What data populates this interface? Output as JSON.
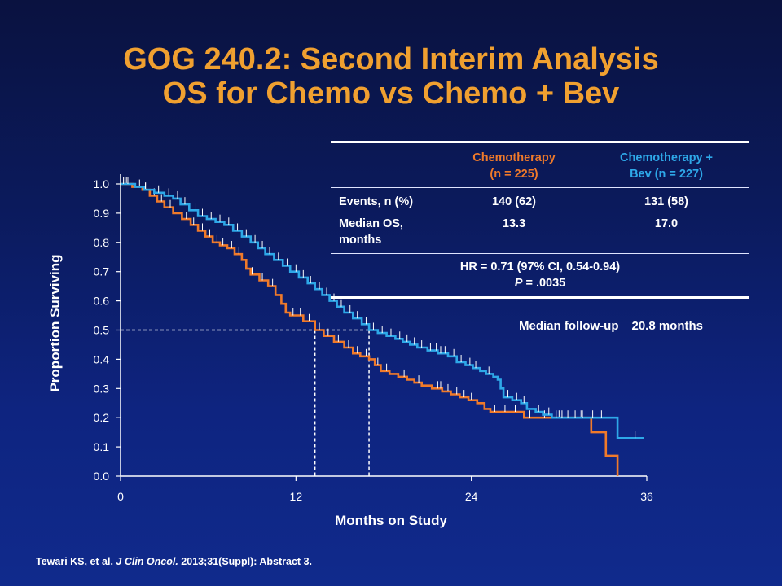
{
  "title_line1": "GOG 240.2: Second Interim Analysis",
  "title_line2": "OS for Chemo vs Chemo + Bev",
  "table": {
    "header": {
      "chemo_line1": "Chemotherapy",
      "chemo_line2": "(n = 225)",
      "bev_line1": "Chemotherapy +",
      "bev_line2": "Bev (n = 227)"
    },
    "events": {
      "label": "Events, n (%)",
      "chemo": "140 (62)",
      "bev": "131 (58)"
    },
    "median_os": {
      "label_line1": "Median OS,",
      "label_line2": "months",
      "chemo": "13.3",
      "bev": "17.0"
    },
    "hr_line": "HR = 0.71 (97% CI, 0.54-0.94)",
    "p_label": "P",
    "p_value": " = .0035"
  },
  "followup": {
    "label": "Median follow-up",
    "value": "20.8 months"
  },
  "citation": {
    "authors": "Tewari KS, et al. ",
    "journal": "J Clin Oncol.",
    "rest": " 2013;31(Suppl): Abstract 3."
  },
  "chart_data": {
    "type": "line",
    "xlabel": "Months on Study",
    "ylabel": "Proportion Surviving",
    "xlim": [
      0,
      36
    ],
    "ylim": [
      0,
      1.0
    ],
    "x_ticks": [
      0,
      12,
      24,
      36
    ],
    "y_ticks": [
      0.0,
      0.1,
      0.2,
      0.3,
      0.4,
      0.5,
      0.6,
      0.7,
      0.8,
      0.9,
      1.0
    ],
    "grid": false,
    "median_reference": {
      "y": 0.5,
      "x_values": [
        13.3,
        17.0
      ]
    },
    "series": [
      {
        "name": "Chemotherapy",
        "color": "#f07a2a",
        "points": [
          [
            0.0,
            1.0
          ],
          [
            0.8,
            0.99
          ],
          [
            1.5,
            0.98
          ],
          [
            2.0,
            0.96
          ],
          [
            2.5,
            0.94
          ],
          [
            3.0,
            0.92
          ],
          [
            3.6,
            0.9
          ],
          [
            4.2,
            0.88
          ],
          [
            4.8,
            0.86
          ],
          [
            5.3,
            0.84
          ],
          [
            5.8,
            0.82
          ],
          [
            6.3,
            0.8
          ],
          [
            6.8,
            0.79
          ],
          [
            7.3,
            0.78
          ],
          [
            7.8,
            0.76
          ],
          [
            8.3,
            0.74
          ],
          [
            8.6,
            0.71
          ],
          [
            8.9,
            0.69
          ],
          [
            9.5,
            0.67
          ],
          [
            10.1,
            0.65
          ],
          [
            10.6,
            0.62
          ],
          [
            11.0,
            0.59
          ],
          [
            11.3,
            0.56
          ],
          [
            11.6,
            0.55
          ],
          [
            12.5,
            0.53
          ],
          [
            13.3,
            0.5
          ],
          [
            13.9,
            0.48
          ],
          [
            14.6,
            0.46
          ],
          [
            15.3,
            0.44
          ],
          [
            15.9,
            0.42
          ],
          [
            16.4,
            0.41
          ],
          [
            17.0,
            0.4
          ],
          [
            17.4,
            0.38
          ],
          [
            17.8,
            0.36
          ],
          [
            18.4,
            0.35
          ],
          [
            19.0,
            0.34
          ],
          [
            19.6,
            0.33
          ],
          [
            20.1,
            0.32
          ],
          [
            20.6,
            0.31
          ],
          [
            21.3,
            0.3
          ],
          [
            22.0,
            0.29
          ],
          [
            22.6,
            0.28
          ],
          [
            23.2,
            0.27
          ],
          [
            23.8,
            0.26
          ],
          [
            24.4,
            0.25
          ],
          [
            24.9,
            0.23
          ],
          [
            25.3,
            0.22
          ],
          [
            26.0,
            0.22
          ],
          [
            26.7,
            0.22
          ],
          [
            27.2,
            0.22
          ],
          [
            27.6,
            0.2
          ],
          [
            28.5,
            0.2
          ],
          [
            29.2,
            0.2
          ],
          [
            31.0,
            0.2
          ],
          [
            32.0,
            0.2
          ],
          [
            32.2,
            0.15
          ],
          [
            33.0,
            0.15
          ],
          [
            33.2,
            0.07
          ],
          [
            33.8,
            0.07
          ],
          [
            34.0,
            0.0
          ]
        ],
        "censor_x": [
          0.3,
          0.4,
          1.3,
          1.7,
          2.3,
          2.8,
          3.4,
          4.5,
          5.0,
          5.6,
          6.1,
          6.6,
          7.0,
          7.6,
          8.1,
          9.0,
          9.7,
          10.4,
          11.8,
          12.3,
          12.9,
          13.6,
          14.2,
          14.9,
          15.6,
          16.2,
          16.8,
          17.6,
          18.2,
          19.4,
          20.4,
          21.7,
          21.9,
          22.4,
          23.0,
          23.5,
          24.0,
          25.6,
          26.3,
          27.0,
          28.0,
          29.0,
          30.0,
          31.5
        ]
      },
      {
        "name": "Chemotherapy + Bev",
        "color": "#2ea8e8",
        "points": [
          [
            0.0,
            1.0
          ],
          [
            1.0,
            0.99
          ],
          [
            1.6,
            0.98
          ],
          [
            2.3,
            0.97
          ],
          [
            3.0,
            0.96
          ],
          [
            3.6,
            0.95
          ],
          [
            4.1,
            0.93
          ],
          [
            4.7,
            0.91
          ],
          [
            5.3,
            0.89
          ],
          [
            5.9,
            0.88
          ],
          [
            6.5,
            0.87
          ],
          [
            7.1,
            0.86
          ],
          [
            7.7,
            0.84
          ],
          [
            8.3,
            0.82
          ],
          [
            8.9,
            0.8
          ],
          [
            9.4,
            0.78
          ],
          [
            9.9,
            0.76
          ],
          [
            10.5,
            0.74
          ],
          [
            11.1,
            0.72
          ],
          [
            11.6,
            0.7
          ],
          [
            12.2,
            0.68
          ],
          [
            12.8,
            0.66
          ],
          [
            13.3,
            0.64
          ],
          [
            13.8,
            0.62
          ],
          [
            14.3,
            0.6
          ],
          [
            14.8,
            0.58
          ],
          [
            15.3,
            0.56
          ],
          [
            15.9,
            0.54
          ],
          [
            16.5,
            0.52
          ],
          [
            17.0,
            0.5
          ],
          [
            17.6,
            0.49
          ],
          [
            18.2,
            0.48
          ],
          [
            18.8,
            0.47
          ],
          [
            19.3,
            0.46
          ],
          [
            19.8,
            0.45
          ],
          [
            20.3,
            0.44
          ],
          [
            21.0,
            0.43
          ],
          [
            21.7,
            0.42
          ],
          [
            22.4,
            0.41
          ],
          [
            23.0,
            0.39
          ],
          [
            23.6,
            0.38
          ],
          [
            24.1,
            0.37
          ],
          [
            24.6,
            0.36
          ],
          [
            25.0,
            0.35
          ],
          [
            25.5,
            0.34
          ],
          [
            25.8,
            0.33
          ],
          [
            26.0,
            0.3
          ],
          [
            26.2,
            0.27
          ],
          [
            26.8,
            0.26
          ],
          [
            27.4,
            0.25
          ],
          [
            27.8,
            0.23
          ],
          [
            28.4,
            0.22
          ],
          [
            28.9,
            0.21
          ],
          [
            29.5,
            0.2
          ],
          [
            31.0,
            0.2
          ],
          [
            33.0,
            0.2
          ],
          [
            33.9,
            0.2
          ],
          [
            34.0,
            0.13
          ],
          [
            35.8,
            0.13
          ]
        ],
        "censor_x": [
          0.2,
          0.5,
          1.2,
          1.8,
          2.6,
          3.3,
          3.9,
          4.4,
          5.1,
          5.6,
          6.2,
          6.8,
          7.4,
          8.0,
          8.6,
          9.2,
          9.7,
          10.2,
          10.8,
          11.4,
          12.0,
          12.5,
          13.0,
          13.6,
          14.1,
          14.6,
          15.1,
          15.7,
          16.2,
          16.8,
          17.3,
          17.9,
          18.5,
          19.1,
          19.6,
          20.1,
          20.6,
          21.2,
          21.6,
          21.9,
          22.2,
          22.8,
          23.3,
          23.9,
          24.3,
          25.2,
          26.5,
          27.1,
          27.6,
          28.6,
          29.3,
          29.8,
          30.2,
          30.6,
          31.1,
          31.6,
          32.3,
          32.9,
          35.2
        ]
      }
    ]
  }
}
